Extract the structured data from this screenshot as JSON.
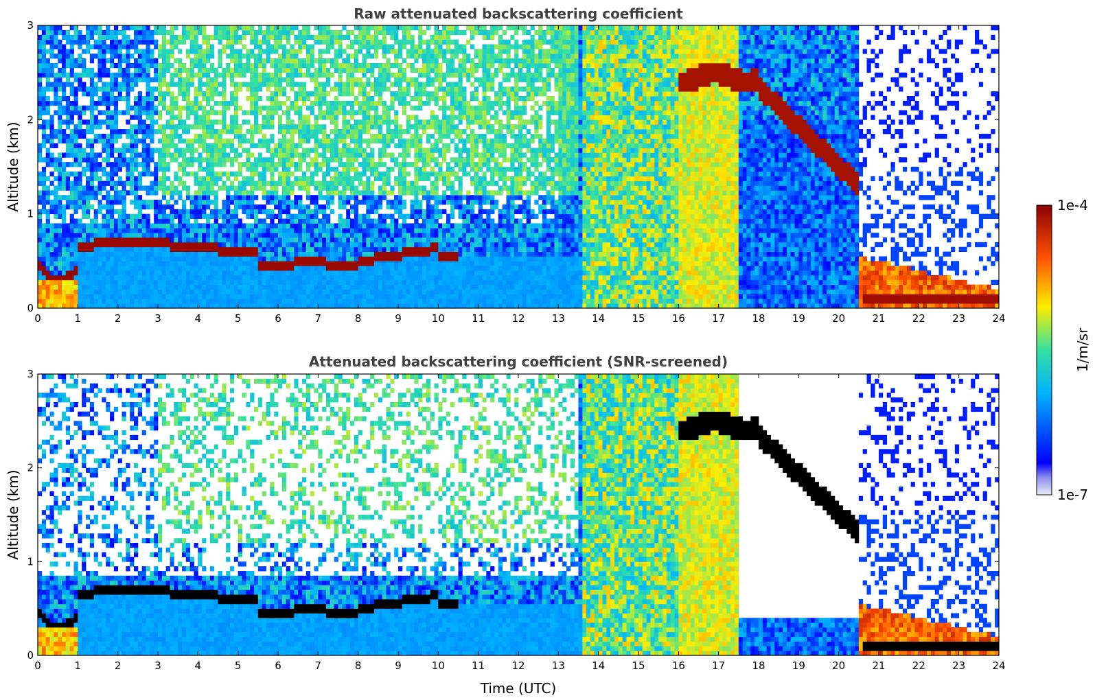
{
  "chart_data": [
    {
      "type": "heatmap",
      "title": "Raw attenuated backscattering coefficient",
      "xlabel": "",
      "ylabel": "Altitude (km)",
      "xlim": [
        0,
        24
      ],
      "ylim": [
        0,
        3
      ],
      "x_ticks": [
        "0",
        "1",
        "2",
        "3",
        "4",
        "5",
        "6",
        "7",
        "8",
        "9",
        "10",
        "11",
        "12",
        "13",
        "14",
        "15",
        "16",
        "17",
        "18",
        "19",
        "20",
        "21",
        "22",
        "23",
        "24"
      ],
      "y_ticks": [
        "0",
        "1",
        "2",
        "3"
      ],
      "colorbar_ref": "colorbar",
      "features": [
        {
          "name": "boundary layer top",
          "time_range": [
            1,
            10
          ],
          "altitude_km_approx": [
            0.65,
            0.45
          ]
        },
        {
          "name": "elevated cloud layer",
          "time_range": [
            16,
            20.5
          ],
          "altitude_km_approx": [
            2.4,
            1.3
          ]
        },
        {
          "name": "low cloud",
          "time_range": [
            20.5,
            24
          ],
          "altitude_km_approx": [
            0.55,
            0.15
          ]
        }
      ]
    },
    {
      "type": "heatmap",
      "title": "Attenuated backscattering coefficient (SNR-screened)",
      "xlabel": "Time (UTC)",
      "ylabel": "Altitude (km)",
      "xlim": [
        0,
        24
      ],
      "ylim": [
        0,
        3
      ],
      "x_ticks": [
        "0",
        "1",
        "2",
        "3",
        "4",
        "5",
        "6",
        "7",
        "8",
        "9",
        "10",
        "11",
        "12",
        "13",
        "14",
        "15",
        "16",
        "17",
        "18",
        "19",
        "20",
        "21",
        "22",
        "23",
        "24"
      ],
      "y_ticks": [
        "0",
        "1",
        "2",
        "3"
      ],
      "colorbar_ref": "colorbar"
    }
  ],
  "colorbar": {
    "label": "1/m/sr",
    "max_label": "1e-4",
    "min_label": "1e-7",
    "scale": "log",
    "colormap": "jet"
  }
}
